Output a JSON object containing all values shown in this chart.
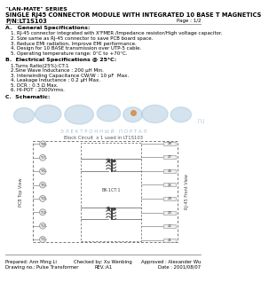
{
  "title_series": "\"LAN-MATE\" SERIES",
  "title_main": "SINGLE RJ45 CONNECTOR MODULE WITH INTEGRATED 10 BASE T MAGNETICS",
  "pn": "P/N:LT1S103",
  "page": "Page : 1/2",
  "section_a": "A.   General Specifications:",
  "spec_a": [
    "1. RJ-45 connector integrated with X'FMER /Impedance resistor/High voltage capacitor.",
    "2. Size same as RJ-45 connector to save PCB board space.",
    "3. Reduce EMI radiation, Improve EMI performance.",
    "4. Design for 10 BASE transmission over UTP-5 cable.",
    "5. Operating temperature range: 0°C to +70°C."
  ],
  "section_b": "B.  Electrical Specifications @ 25°C:",
  "spec_b": [
    "1.Turns Ratio(25%):CT:1",
    "2.Sine Wave Inductance : 200 μH Min.",
    "3. Interwinding Capacitance CW/W : 10 pF  Max.",
    "4. Leakage Inductance : 0.2 μH Max.",
    "5. DCR : 0.3 Ω Max.",
    "6. HI-POT : 2000Vrms."
  ],
  "section_c": "C.  Schematic:",
  "footer_prepared": "Prepared: Ann Ming Li",
  "footer_checked": "Checked by: Xu Wenbing",
  "footer_approved": "Approved : Alexander Wu",
  "footer_drawing": "Drawing no.: Pulse Transformer",
  "footer_rev": "REV.:A1",
  "footer_date": "Date : 2001/08/07",
  "bg_color": "#ffffff",
  "text_color": "#000000",
  "watermark_color": "#aac8de",
  "cyrillic_color": "#8ab0cc",
  "schematic_line_color": "#555555",
  "pin_fill": "#e8e8e8",
  "pin_edge": "#888888"
}
